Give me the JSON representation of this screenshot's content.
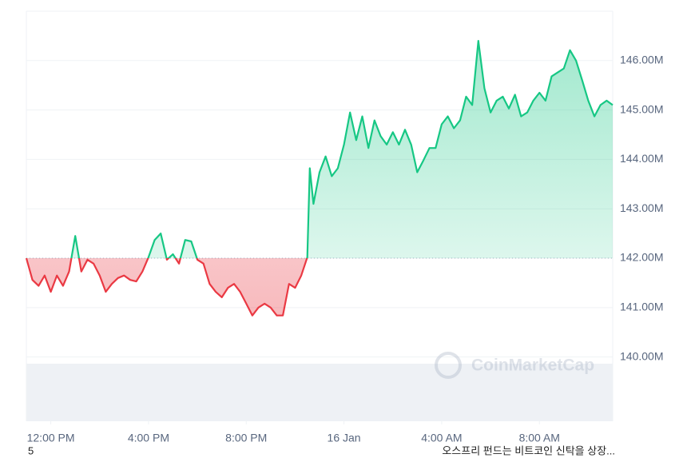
{
  "chart_data": {
    "type": "line",
    "x": [
      -1,
      -0.75,
      -0.5,
      -0.25,
      0,
      0.25,
      0.5,
      0.75,
      1,
      1.25,
      1.5,
      1.75,
      2,
      2.25,
      2.5,
      2.75,
      3,
      3.25,
      3.5,
      3.75,
      4,
      4.25,
      4.5,
      4.75,
      5,
      5.25,
      5.5,
      5.75,
      6,
      6.25,
      6.5,
      6.75,
      7,
      7.25,
      7.5,
      7.75,
      8,
      8.25,
      8.5,
      8.75,
      9,
      9.25,
      9.5,
      9.75,
      10,
      10.25,
      10.5,
      10.6,
      10.75,
      11,
      11.25,
      11.5,
      11.75,
      12,
      12.25,
      12.5,
      12.75,
      13,
      13.25,
      13.5,
      13.75,
      14,
      14.25,
      14.5,
      14.75,
      15,
      15.25,
      15.5,
      15.75,
      16,
      16.25,
      16.5,
      16.75,
      17,
      17.25,
      17.5,
      17.75,
      18,
      18.25,
      18.5,
      18.75,
      19,
      19.25,
      19.5,
      19.75,
      20,
      20.25,
      20.5,
      20.75,
      21,
      21.25,
      21.5,
      21.75,
      22,
      22.25,
      22.5,
      22.75,
      23
    ],
    "values": [
      142.0,
      141.56,
      141.44,
      141.65,
      141.32,
      141.65,
      141.44,
      141.73,
      142.45,
      141.73,
      141.97,
      141.89,
      141.65,
      141.32,
      141.48,
      141.6,
      141.65,
      141.56,
      141.53,
      141.73,
      142.02,
      142.37,
      142.5,
      141.97,
      142.08,
      141.89,
      142.37,
      142.34,
      141.97,
      141.89,
      141.48,
      141.32,
      141.21,
      141.4,
      141.48,
      141.32,
      141.08,
      140.84,
      141.0,
      141.08,
      141.0,
      140.84,
      140.84,
      141.48,
      141.4,
      141.65,
      142.02,
      143.82,
      143.1,
      143.74,
      144.06,
      143.66,
      143.82,
      144.3,
      144.95,
      144.39,
      144.87,
      144.23,
      144.79,
      144.47,
      144.3,
      144.55,
      144.3,
      144.6,
      144.3,
      143.74,
      143.98,
      144.23,
      144.23,
      144.71,
      144.87,
      144.63,
      144.79,
      145.27,
      145.1,
      146.4,
      145.44,
      144.95,
      145.19,
      145.27,
      145.03,
      145.31,
      144.87,
      144.95,
      145.19,
      145.35,
      145.19,
      145.68,
      145.76,
      145.84,
      146.21,
      146.0,
      145.6,
      145.19,
      144.87,
      145.1,
      145.19,
      145.1
    ],
    "baseline": 142,
    "colors": {
      "above": "#16c784",
      "below": "#ea3943"
    },
    "xlim": [
      -1,
      23
    ],
    "xticks": [
      {
        "value": 0,
        "label": "12:00 PM"
      },
      {
        "value": 4,
        "label": "4:00 PM"
      },
      {
        "value": 8,
        "label": "8:00 PM"
      },
      {
        "value": 12,
        "label": "16 Jan"
      },
      {
        "value": 16,
        "label": "4:00 AM"
      },
      {
        "value": 20,
        "label": "8:00 AM"
      }
    ],
    "ylim": [
      138.7,
      147
    ],
    "yticks": [
      {
        "value": 140,
        "label": "140.00M"
      },
      {
        "value": 141,
        "label": "141.00M"
      },
      {
        "value": 142,
        "label": "142.00M"
      },
      {
        "value": 143,
        "label": "143.00M"
      },
      {
        "value": 144,
        "label": "144.00M"
      },
      {
        "value": 145,
        "label": "145.00M"
      },
      {
        "value": 146,
        "label": "146.00M"
      }
    ],
    "grid": true,
    "watermark": "CoinMarketCap"
  },
  "footer": {
    "left": "5",
    "news": "오스프리 펀드는 비트코인 신탁을 상장..."
  }
}
